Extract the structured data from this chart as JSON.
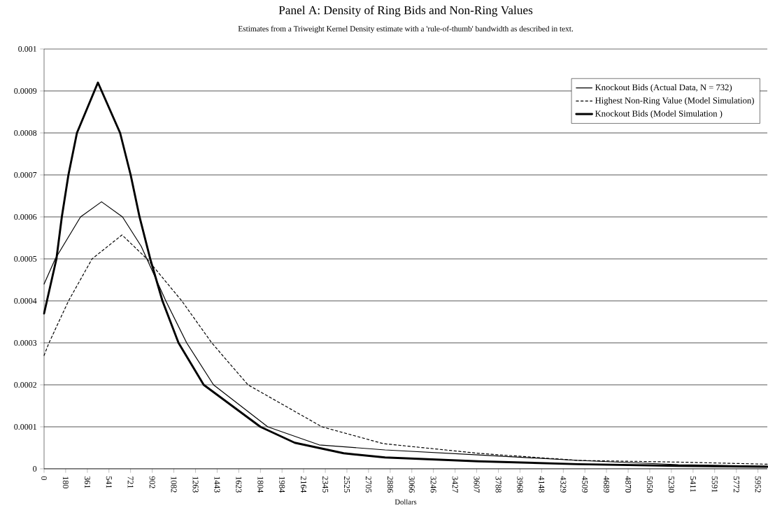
{
  "chart_data": {
    "type": "line",
    "title": "Panel A: Density of Ring Bids and Non-Ring Values",
    "subtitle": "Estimates from a Triweight Kernel Density estimate with a 'rule-of-thumb' bandwidth as described in text.",
    "xlabel": "Dollars",
    "xlim": [
      0,
      6030
    ],
    "xticks": [
      0,
      180,
      361,
      541,
      721,
      902,
      1082,
      1263,
      1443,
      1623,
      1804,
      1984,
      2164,
      2345,
      2525,
      2705,
      2886,
      3066,
      3246,
      3427,
      3607,
      3788,
      3968,
      4148,
      4329,
      4509,
      4689,
      4870,
      5050,
      5230,
      5411,
      5591,
      5772,
      5952
    ],
    "ylim": [
      0,
      0.001
    ],
    "yticks": [
      0,
      0.0001,
      0.0002,
      0.0003,
      0.0004,
      0.0005,
      0.0006,
      0.0007,
      0.0008,
      0.0009,
      0.001
    ],
    "grid": "y",
    "legend": "top right",
    "marker": "none",
    "series": [
      {
        "name": "Knockout Bids (Actual Data, N = 732)",
        "color": "#000000",
        "line_style": "solid",
        "x": [
          0,
          93,
          304,
          479,
          654,
          810,
          1015,
          1189,
          1413,
          1865,
          2294,
          2843,
          3619,
          4454,
          5288,
          6030
        ],
        "values": [
          0.00044,
          0.0005,
          0.0006,
          0.000636,
          0.0006,
          0.00053,
          0.0004,
          0.0003,
          0.0002,
          0.0001,
          5.7e-05,
          4.5e-05,
          3.3e-05,
          2e-05,
          1e-05,
          6e-06
        ]
      },
      {
        "name": "Highest Non-Ring Value (Model Simulation)",
        "color": "#000000",
        "line_style": "dashed",
        "x": [
          0,
          41,
          204,
          400,
          650,
          858,
          1148,
          1398,
          1700,
          2317,
          2827,
          3619,
          4454,
          5288,
          6030
        ],
        "values": [
          0.00027,
          0.0003,
          0.0004,
          0.0005,
          0.000557,
          0.0005,
          0.0004,
          0.0003,
          0.0002,
          0.0001,
          6e-05,
          3.7e-05,
          2e-05,
          1.6e-05,
          1.1e-05
        ]
      },
      {
        "name": "Knockout Bids (Model Simulation )",
        "color": "#000000",
        "line_style": "solid",
        "x": [
          0,
          103,
          148,
          203,
          274,
          449,
          634,
          722,
          796,
          885,
          987,
          1121,
          1331,
          1804,
          2090,
          2498,
          2843,
          3619,
          4454,
          5288,
          6030
        ],
        "values": [
          0.00037,
          0.0005,
          0.0006,
          0.0007,
          0.0008,
          0.00092,
          0.0008,
          0.0007,
          0.0006,
          0.0005,
          0.0004,
          0.0003,
          0.0002,
          0.0001,
          6.2e-05,
          3.7e-05,
          2.7e-05,
          1.8e-05,
          1.1e-05,
          7e-06,
          5e-06
        ]
      }
    ]
  }
}
